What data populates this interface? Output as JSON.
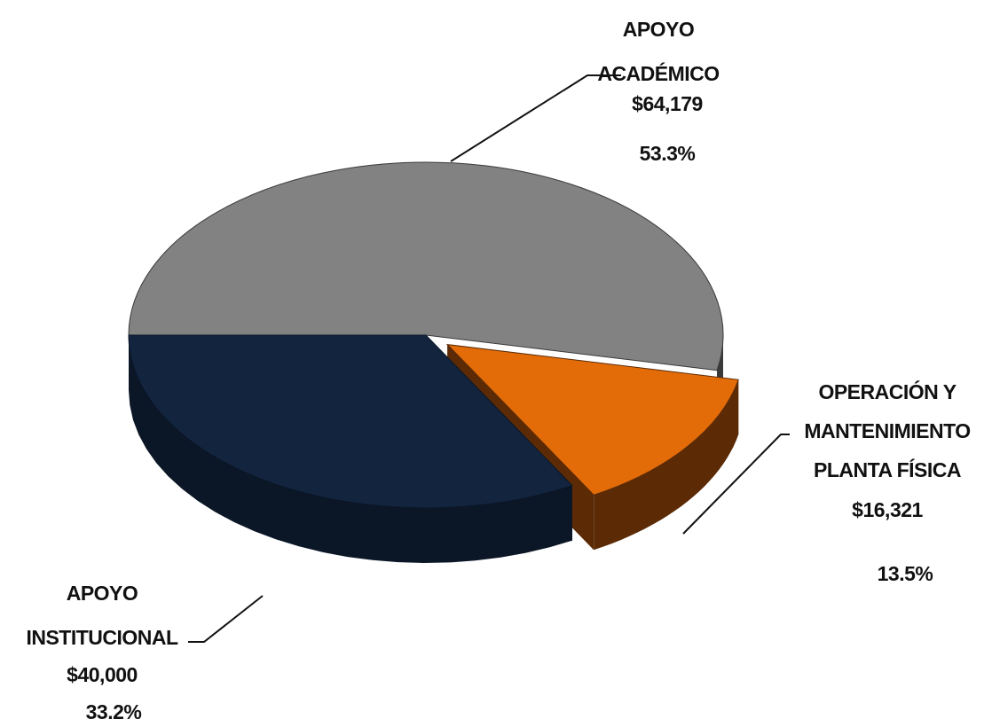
{
  "chart_data": {
    "type": "pie3d",
    "categories": [
      "APOYO\nACADÉMICO",
      "OPERACIÓN Y\nMANTENIMIENTO\nPLANTA FÍSICA",
      "APOYO\nINSTITUCIONAL"
    ],
    "values": [
      64179,
      16321,
      40000
    ],
    "value_labels": [
      "$64,179",
      "$16,321",
      "$40,000"
    ],
    "percentages": [
      53.3,
      13.5,
      33.2
    ],
    "percentage_labels": [
      "53.3%",
      "13.5%",
      "33.2%"
    ],
    "colors": [
      "#828282",
      "#e36c09",
      "#13243f"
    ],
    "side_colors": [
      "#3a3a3a",
      "#5c2b06",
      "#0b1626"
    ],
    "exploded": [
      false,
      true,
      false
    ]
  }
}
